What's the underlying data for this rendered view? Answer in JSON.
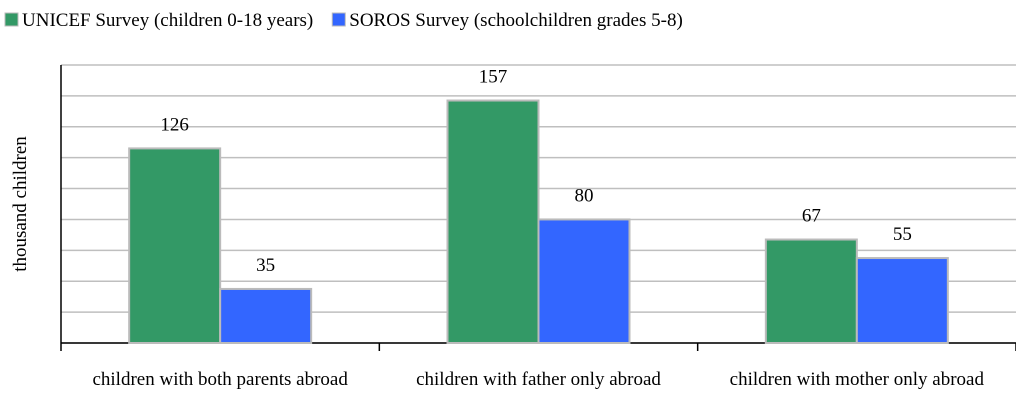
{
  "chart_data": {
    "type": "bar",
    "y_label": "thousand children",
    "categories": [
      "children with both parents abroad",
      "children with father only abroad",
      "children with mother only abroad"
    ],
    "series": [
      {
        "name": "UNICEF Survey (children 0-18 years)",
        "color": "#339966",
        "values": [
          126,
          157,
          67
        ]
      },
      {
        "name": "SOROS Survey (schoolchildren grades 5-8)",
        "color": "#3366ff",
        "values": [
          35,
          80,
          55
        ]
      }
    ],
    "ylim": [
      0,
      180
    ],
    "yticks": [
      0,
      20,
      40,
      60,
      80,
      100,
      120,
      140,
      160,
      180
    ],
    "grid": true,
    "legend": "top"
  }
}
